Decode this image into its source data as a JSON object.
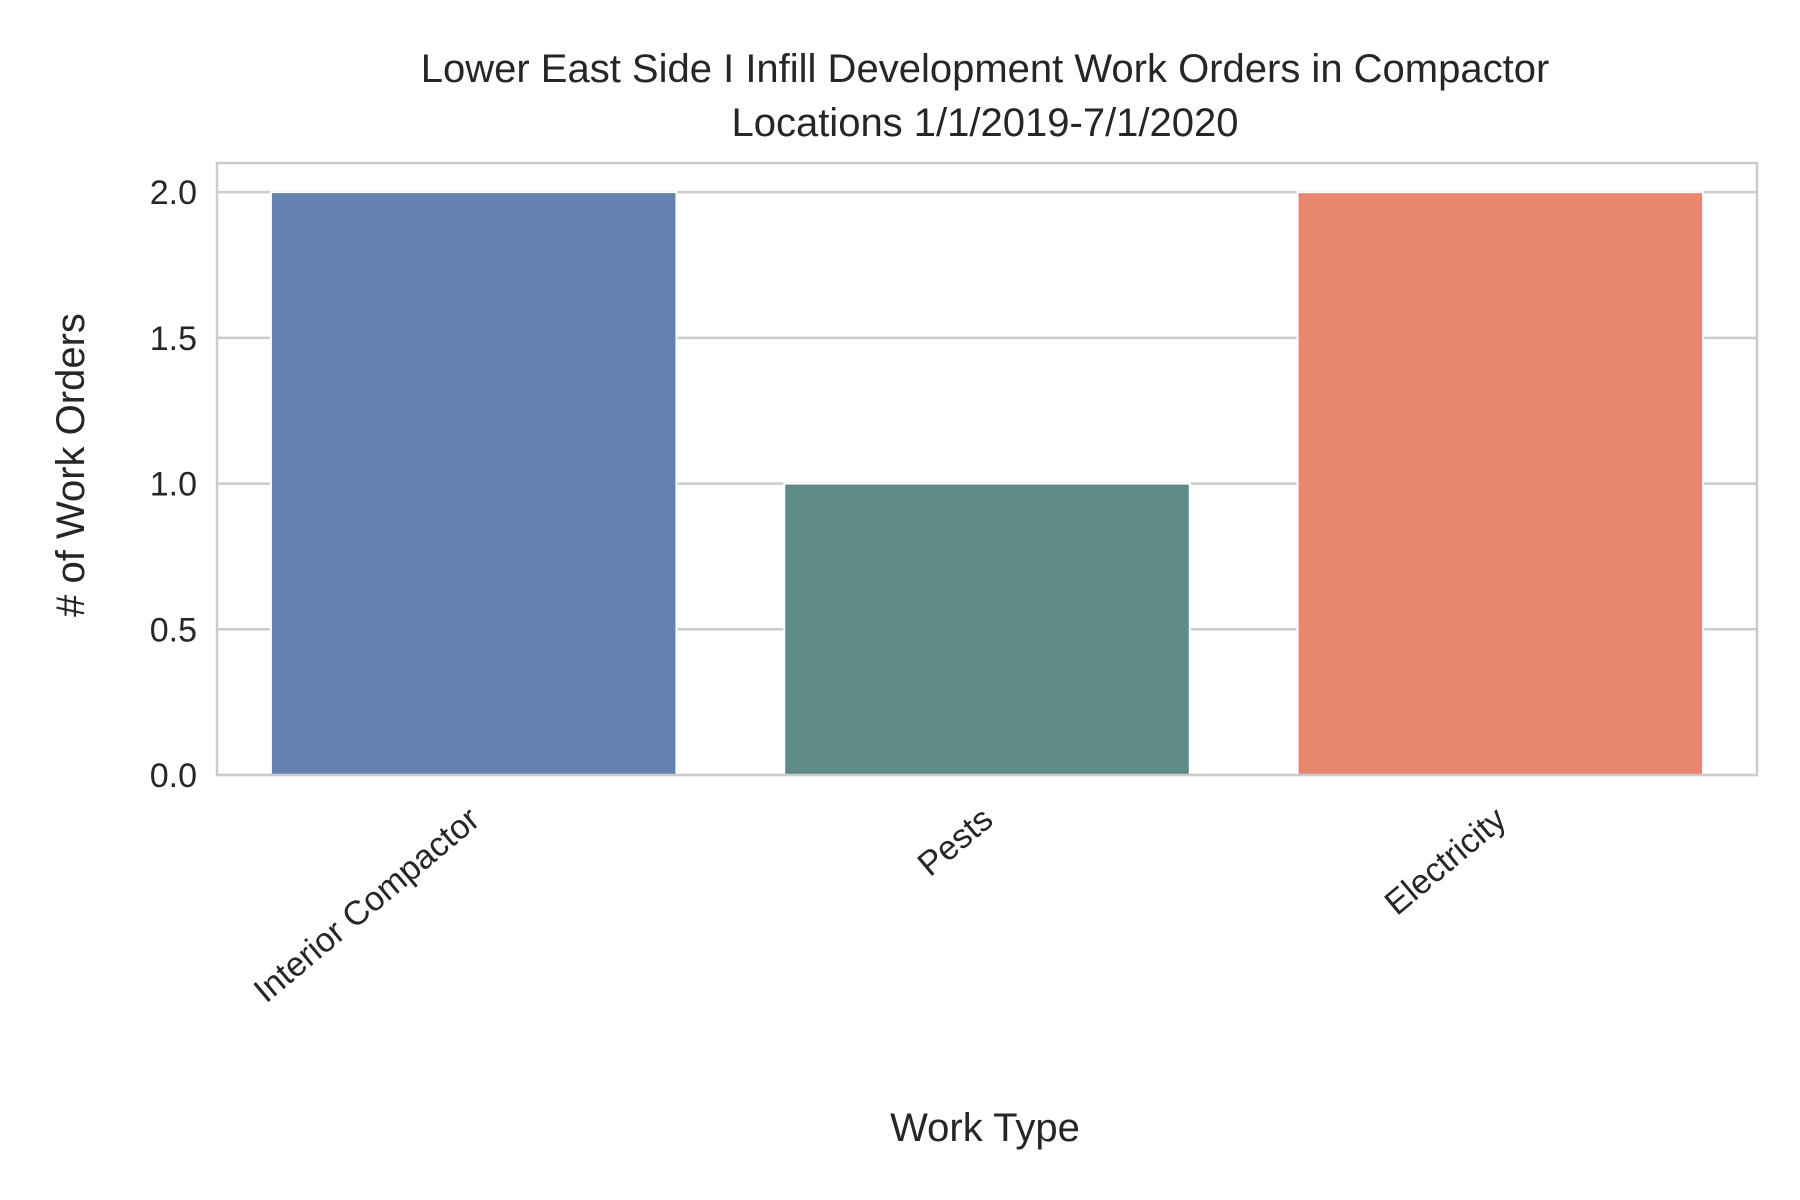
{
  "chart_data": {
    "type": "bar",
    "title_lines": [
      "Lower East Side I Infill Development Work Orders in Compactor",
      "Locations 1/1/2019-7/1/2020"
    ],
    "xlabel": "Work Type",
    "ylabel": "# of Work Orders",
    "categories": [
      "Interior Compactor",
      "Pests",
      "Electricity"
    ],
    "values": [
      2,
      1,
      2
    ],
    "ylim": [
      0,
      2.1
    ],
    "yticks": [
      0.0,
      0.5,
      1.0,
      1.5,
      2.0
    ],
    "ytick_labels": [
      "0.0",
      "0.5",
      "1.0",
      "1.5",
      "2.0"
    ],
    "colors": [
      "#6581b0",
      "#5e8b87",
      "#e98670"
    ],
    "grid": true,
    "legend": "none"
  }
}
